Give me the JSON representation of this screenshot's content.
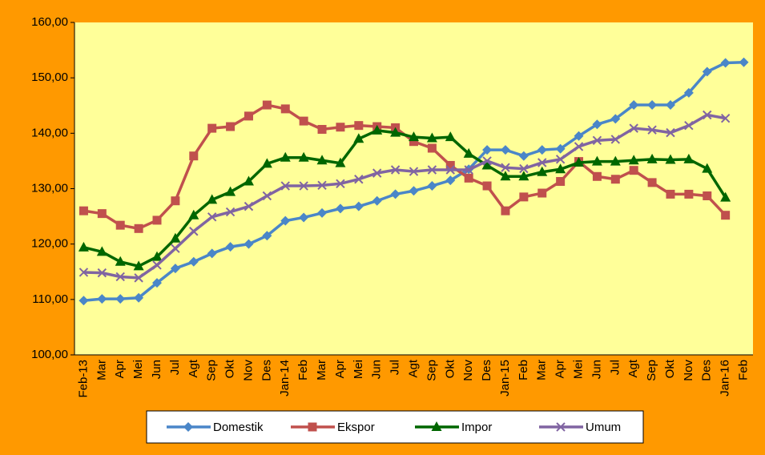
{
  "chart_data": {
    "type": "line",
    "categories": [
      "Feb-13",
      "Mar",
      "Apr",
      "Mei",
      "Jun",
      "Jul",
      "Agt",
      "Sep",
      "Okt",
      "Nov",
      "Des",
      "Jan-14",
      "Feb",
      "Mar",
      "Apr",
      "Mei",
      "Jun",
      "Jul",
      "Agt",
      "Sep",
      "Okt",
      "Nov",
      "Des",
      "Jan-15",
      "Feb",
      "Mar",
      "Apr",
      "Mei",
      "Jun",
      "Jul",
      "Agt",
      "Sep",
      "Okt",
      "Nov",
      "Des",
      "Jan-16",
      "Feb"
    ],
    "series": [
      {
        "name": "Domestik",
        "color": "#4a86c8",
        "marker": "diamond",
        "values": [
          109.8,
          110.1,
          110.1,
          110.3,
          113,
          115.6,
          116.8,
          118.3,
          119.5,
          120,
          121.5,
          124.2,
          124.8,
          125.6,
          126.4,
          126.8,
          127.8,
          129,
          129.6,
          130.5,
          131.5,
          133.5,
          137,
          137,
          135.9,
          137,
          137.2,
          139.5,
          141.6,
          142.6,
          145.1,
          145.1,
          145.1,
          147.3,
          151.1,
          152.7,
          152.8
        ]
      },
      {
        "name": "Ekspor",
        "color": "#c0504d",
        "marker": "square",
        "values": [
          126,
          125.5,
          123.4,
          122.8,
          124.3,
          127.8,
          135.9,
          140.9,
          141.2,
          143.1,
          145.1,
          144.4,
          142.2,
          140.7,
          141.1,
          141.4,
          141.2,
          141,
          138.5,
          137.3,
          134.2,
          131.9,
          130.5,
          126,
          128.5,
          129.2,
          131.3,
          134.9,
          132.2,
          131.7,
          133.3,
          131.1,
          129,
          129,
          128.7,
          125.2,
          null
        ]
      },
      {
        "name": "Impor",
        "color": "#006600",
        "marker": "triangle",
        "values": [
          119.4,
          118.6,
          116.8,
          116,
          117.7,
          121,
          125.2,
          128,
          129.4,
          131.3,
          134.5,
          135.6,
          135.6,
          135.1,
          134.6,
          139,
          140.5,
          140.1,
          139.3,
          139.1,
          139.3,
          136.3,
          134.2,
          132.2,
          132.2,
          133,
          133.5,
          134.7,
          134.9,
          134.9,
          135.1,
          135.3,
          135.2,
          135.3,
          133.6,
          128.4,
          null
        ]
      },
      {
        "name": "Umum",
        "color": "#8064a2",
        "marker": "x",
        "values": [
          114.9,
          114.8,
          114.1,
          113.9,
          116.2,
          119.2,
          122.3,
          124.9,
          125.8,
          126.8,
          128.7,
          130.5,
          130.5,
          130.6,
          130.9,
          131.7,
          132.8,
          133.4,
          133.1,
          133.4,
          133.4,
          133.4,
          135,
          133.8,
          133.6,
          134.7,
          135.3,
          137.6,
          138.7,
          138.9,
          140.9,
          140.6,
          140.1,
          141.4,
          143.3,
          142.7,
          null
        ]
      }
    ],
    "ylim": [
      100,
      160
    ],
    "yticks": [
      {
        "value": 100,
        "label": "100,00"
      },
      {
        "value": 110,
        "label": "110,00"
      },
      {
        "value": 120,
        "label": "120,00"
      },
      {
        "value": 130,
        "label": "130,00"
      },
      {
        "value": 140,
        "label": "140,00"
      },
      {
        "value": 150,
        "label": "150,00"
      },
      {
        "value": 160,
        "label": "160,00"
      }
    ],
    "grid": false,
    "legend": "bottom"
  }
}
